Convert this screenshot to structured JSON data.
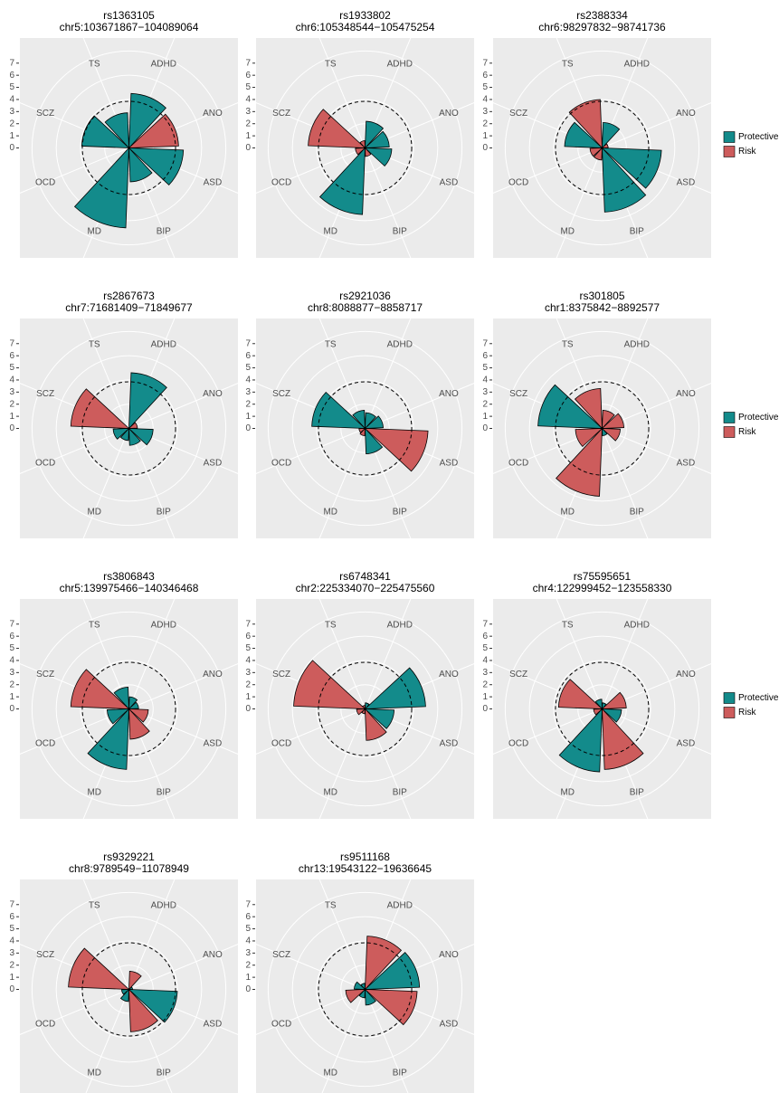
{
  "chart_data": [
    {
      "type": "polar-bar",
      "title": "rs1363105",
      "subtitle": "chr5:103671867−104089064",
      "categories": [
        "ADHD",
        "ANO",
        "ASD",
        "BIP",
        "MD",
        "OCD",
        "SCZ",
        "TS"
      ],
      "series": [
        {
          "name": "Protective",
          "color": "#138b8b",
          "values": [
            4.5,
            null,
            4.5,
            2.8,
            6.6,
            null,
            3.9,
            2.9
          ]
        },
        {
          "name": "Risk",
          "color": "#cd5c5c",
          "values": [
            null,
            4.1,
            null,
            null,
            null,
            null,
            null,
            null
          ]
        }
      ],
      "ylim": [
        0,
        9
      ],
      "yticks": [
        0,
        1,
        2,
        3,
        4,
        5,
        6,
        7
      ],
      "rgrid": [
        2,
        4,
        6,
        8
      ],
      "reference_circle": 3.85
    },
    {
      "type": "polar-bar",
      "title": "rs1933802",
      "subtitle": "chr6:105348544−105475254",
      "categories": [
        "ADHD",
        "ANO",
        "ASD",
        "BIP",
        "MD",
        "OCD",
        "SCZ",
        "TS"
      ],
      "series": [
        {
          "name": "Protective",
          "color": "#138b8b",
          "values": [
            2.2,
            2.0,
            2.2,
            null,
            5.5,
            null,
            null,
            null
          ]
        },
        {
          "name": "Risk",
          "color": "#cd5c5c",
          "values": [
            null,
            null,
            null,
            0.7,
            null,
            0.8,
            4.7,
            0.6
          ]
        }
      ],
      "ylim": [
        0,
        9
      ],
      "yticks": [
        0,
        1,
        2,
        3,
        4,
        5,
        6,
        7
      ],
      "rgrid": [
        2,
        4,
        6,
        8
      ],
      "reference_circle": 3.85
    },
    {
      "type": "polar-bar",
      "title": "rs2388334",
      "subtitle": "chr6:98297832−98741736",
      "categories": [
        "ADHD",
        "ANO",
        "ASD",
        "BIP",
        "MD",
        "OCD",
        "SCZ",
        "TS"
      ],
      "series": [
        {
          "name": "Protective",
          "color": "#138b8b",
          "values": [
            2.1,
            null,
            4.9,
            5.3,
            null,
            null,
            3.1,
            null
          ]
        },
        {
          "name": "Risk",
          "color": "#cd5c5c",
          "values": [
            null,
            0.5,
            null,
            null,
            1.0,
            1.0,
            null,
            4.0
          ]
        }
      ],
      "ylim": [
        0,
        9
      ],
      "yticks": [
        0,
        1,
        2,
        3,
        4,
        5,
        6,
        7
      ],
      "rgrid": [
        2,
        4,
        6,
        8
      ],
      "reference_circle": 3.85,
      "legend": "right"
    },
    {
      "type": "polar-bar",
      "title": "rs2867673",
      "subtitle": "chr7:71681409−71849677",
      "categories": [
        "ADHD",
        "ANO",
        "ASD",
        "BIP",
        "MD",
        "OCD",
        "SCZ",
        "TS"
      ],
      "series": [
        {
          "name": "Protective",
          "color": "#138b8b",
          "values": [
            4.6,
            null,
            2.0,
            1.4,
            1.0,
            1.3,
            null,
            null
          ]
        },
        {
          "name": "Risk",
          "color": "#cd5c5c",
          "values": [
            null,
            0.7,
            null,
            null,
            null,
            null,
            4.8,
            null
          ]
        }
      ],
      "ylim": [
        0,
        9
      ],
      "yticks": [
        0,
        1,
        2,
        3,
        4,
        5,
        6,
        7
      ],
      "rgrid": [
        2,
        4,
        6,
        8
      ],
      "reference_circle": 3.85
    },
    {
      "type": "polar-bar",
      "title": "rs2921036",
      "subtitle": "chr8:8088877−8858717",
      "categories": [
        "ADHD",
        "ANO",
        "ASD",
        "BIP",
        "MD",
        "OCD",
        "SCZ",
        "TS"
      ],
      "series": [
        {
          "name": "Protective",
          "color": "#138b8b",
          "values": [
            1.3,
            1.5,
            null,
            2.1,
            null,
            null,
            4.4,
            1.5
          ]
        },
        {
          "name": "Risk",
          "color": "#cd5c5c",
          "values": [
            null,
            null,
            5.2,
            null,
            0.6,
            0.5,
            null,
            null
          ]
        }
      ],
      "ylim": [
        0,
        9
      ],
      "yticks": [
        0,
        1,
        2,
        3,
        4,
        5,
        6,
        7
      ],
      "rgrid": [
        2,
        4,
        6,
        8
      ],
      "reference_circle": 3.85
    },
    {
      "type": "polar-bar",
      "title": "rs301805",
      "subtitle": "chr1:8375842−8892577",
      "categories": [
        "ADHD",
        "ANO",
        "ASD",
        "BIP",
        "MD",
        "OCD",
        "SCZ",
        "TS"
      ],
      "series": [
        {
          "name": "Protective",
          "color": "#138b8b",
          "values": [
            null,
            null,
            null,
            0.6,
            null,
            null,
            5.3,
            null
          ]
        },
        {
          "name": "Risk",
          "color": "#cd5c5c",
          "values": [
            1.5,
            1.8,
            1.5,
            null,
            5.6,
            2.2,
            null,
            3.3
          ]
        }
      ],
      "ylim": [
        0,
        9
      ],
      "yticks": [
        0,
        1,
        2,
        3,
        4,
        5,
        6,
        7
      ],
      "rgrid": [
        2,
        4,
        6,
        8
      ],
      "reference_circle": 3.85,
      "legend": "right"
    },
    {
      "type": "polar-bar",
      "title": "rs3806843",
      "subtitle": "chr5:139975466−140346468",
      "categories": [
        "ADHD",
        "ANO",
        "ASD",
        "BIP",
        "MD",
        "OCD",
        "SCZ",
        "TS"
      ],
      "series": [
        {
          "name": "Protective",
          "color": "#138b8b",
          "values": [
            1.0,
            0.8,
            null,
            null,
            5.0,
            1.8,
            null,
            1.8
          ]
        },
        {
          "name": "Risk",
          "color": "#cd5c5c",
          "values": [
            null,
            null,
            1.6,
            2.5,
            null,
            null,
            4.8,
            null
          ]
        }
      ],
      "ylim": [
        0,
        9
      ],
      "yticks": [
        0,
        1,
        2,
        3,
        4,
        5,
        6,
        7
      ],
      "rgrid": [
        2,
        4,
        6,
        8
      ],
      "reference_circle": 3.85
    },
    {
      "type": "polar-bar",
      "title": "rs6748341",
      "subtitle": "chr2:225334070−225475560",
      "categories": [
        "ADHD",
        "ANO",
        "ASD",
        "BIP",
        "MD",
        "OCD",
        "SCZ",
        "TS"
      ],
      "series": [
        {
          "name": "Protective",
          "color": "#138b8b",
          "values": [
            0.5,
            5.0,
            2.4,
            null,
            null,
            null,
            null,
            null
          ]
        },
        {
          "name": "Risk",
          "color": "#cd5c5c",
          "values": [
            null,
            null,
            null,
            2.6,
            0.4,
            0.7,
            5.9,
            0.3
          ]
        }
      ],
      "ylim": [
        0,
        9
      ],
      "yticks": [
        0,
        1,
        2,
        3,
        4,
        5,
        6,
        7
      ],
      "rgrid": [
        2,
        4,
        6,
        8
      ],
      "reference_circle": 3.85
    },
    {
      "type": "polar-bar",
      "title": "rs75595651",
      "subtitle": "chr4:122999452−123558330",
      "categories": [
        "ADHD",
        "ANO",
        "ASD",
        "BIP",
        "MD",
        "OCD",
        "SCZ",
        "TS"
      ],
      "series": [
        {
          "name": "Protective",
          "color": "#138b8b",
          "values": [
            0.5,
            null,
            1.6,
            null,
            5.2,
            null,
            null,
            0.8
          ]
        },
        {
          "name": "Risk",
          "color": "#cd5c5c",
          "values": [
            null,
            2.0,
            null,
            5.0,
            null,
            0.7,
            3.6,
            null
          ]
        }
      ],
      "ylim": [
        0,
        9
      ],
      "yticks": [
        0,
        1,
        2,
        3,
        4,
        5,
        6,
        7
      ],
      "rgrid": [
        2,
        4,
        6,
        8
      ],
      "reference_circle": 3.85,
      "legend": "right"
    },
    {
      "type": "polar-bar",
      "title": "rs9329221",
      "subtitle": "chr8:9789549−11078949",
      "categories": [
        "ADHD",
        "ANO",
        "ASD",
        "BIP",
        "MD",
        "OCD",
        "SCZ",
        "TS"
      ],
      "series": [
        {
          "name": "Protective",
          "color": "#138b8b",
          "values": [
            null,
            0.3,
            4.0,
            null,
            1.0,
            0.6,
            null,
            null
          ]
        },
        {
          "name": "Risk",
          "color": "#cd5c5c",
          "values": [
            1.5,
            null,
            null,
            3.5,
            null,
            null,
            5.0,
            null
          ]
        }
      ],
      "ylim": [
        0,
        9
      ],
      "yticks": [
        0,
        1,
        2,
        3,
        4,
        5,
        6,
        7
      ],
      "rgrid": [
        2,
        4,
        6,
        8
      ],
      "reference_circle": 3.85
    },
    {
      "type": "polar-bar",
      "title": "rs9511168",
      "subtitle": "chr13:19543122−19636645",
      "categories": [
        "ADHD",
        "ANO",
        "ASD",
        "BIP",
        "MD",
        "OCD",
        "SCZ",
        "TS"
      ],
      "series": [
        {
          "name": "Protective",
          "color": "#138b8b",
          "values": [
            null,
            4.5,
            null,
            1.3,
            0.7,
            null,
            0.9,
            0.5
          ]
        },
        {
          "name": "Risk",
          "color": "#cd5c5c",
          "values": [
            4.4,
            null,
            4.3,
            null,
            null,
            1.6,
            null,
            null
          ]
        }
      ],
      "ylim": [
        0,
        9
      ],
      "yticks": [
        0,
        1,
        2,
        3,
        4,
        5,
        6,
        7
      ],
      "rgrid": [
        2,
        4,
        6,
        8
      ],
      "reference_circle": 3.85
    }
  ]
}
